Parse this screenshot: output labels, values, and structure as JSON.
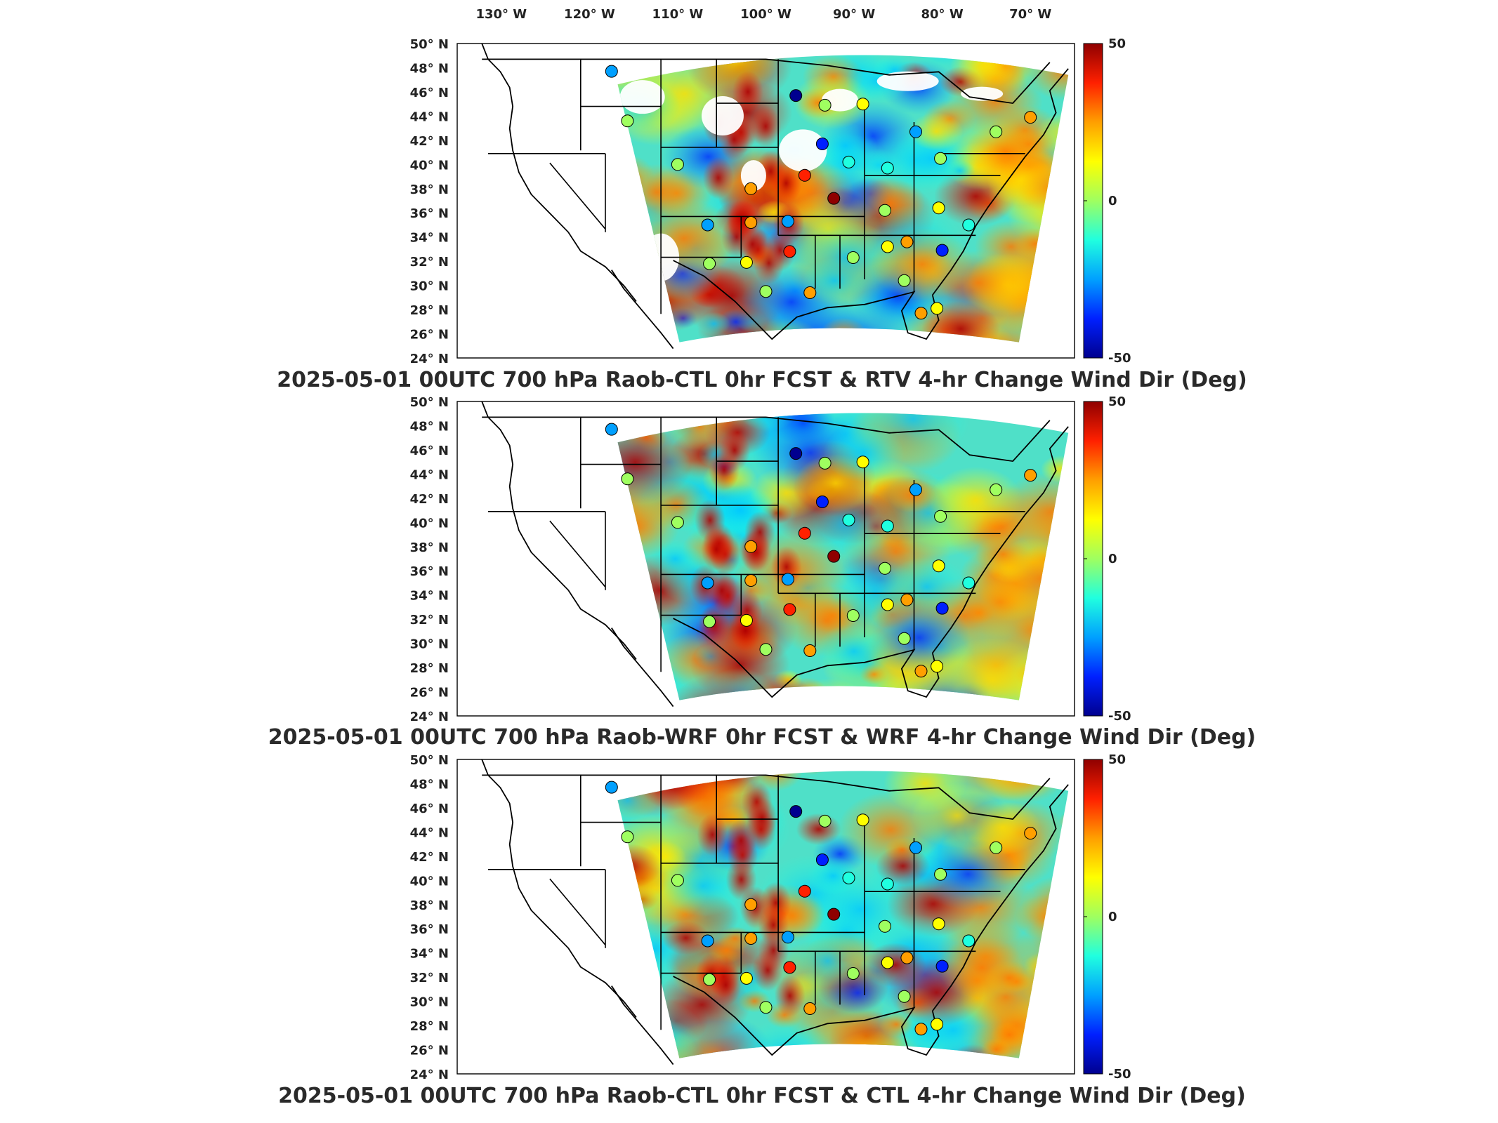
{
  "chart_data": [
    {
      "type": "heatmap",
      "title": "2025-05-01 00UTC 700 hPa Raob-CTL 0hr FCST & RTV 4-hr Change Wind Dir (Deg)",
      "colorbar": {
        "min": -50,
        "max": 50,
        "tick_labels": [
          "50",
          "0",
          "-50"
        ]
      },
      "lon_labels": [
        "130° W",
        "120° W",
        "110° W",
        "100° W",
        "90° W",
        "80° W",
        "70° W"
      ],
      "lat_labels": [
        "50° N",
        "48° N",
        "46° N",
        "44° N",
        "42° N",
        "40° N",
        "38° N",
        "36° N",
        "34° N",
        "32° N",
        "30° N",
        "28° N",
        "26° N",
        "24° N"
      ],
      "stations": [
        {
          "lon": -117.5,
          "lat": 47.7,
          "value": -25
        },
        {
          "lon": -96.6,
          "lat": 45.7,
          "value": -45
        },
        {
          "lon": -115.7,
          "lat": 43.6,
          "value": -5
        },
        {
          "lon": -93.3,
          "lat": 44.9,
          "value": 5
        },
        {
          "lon": -89.0,
          "lat": 45.0,
          "value": 10
        },
        {
          "lon": -83.0,
          "lat": 42.7,
          "value": -20
        },
        {
          "lon": -73.9,
          "lat": 42.7,
          "value": 5
        },
        {
          "lon": -70.0,
          "lat": 43.9,
          "value": 25
        },
        {
          "lon": -93.6,
          "lat": 41.7,
          "value": -40
        },
        {
          "lon": -90.6,
          "lat": 40.2,
          "value": -10
        },
        {
          "lon": -86.2,
          "lat": 39.7,
          "value": -15
        },
        {
          "lon": -80.2,
          "lat": 40.5,
          "value": 0
        },
        {
          "lon": -101.7,
          "lat": 38.0,
          "value": 30
        },
        {
          "lon": -95.6,
          "lat": 39.1,
          "value": 35
        },
        {
          "lon": -92.3,
          "lat": 37.2,
          "value": 48
        },
        {
          "lon": -86.5,
          "lat": 36.2,
          "value": 0
        },
        {
          "lon": -80.4,
          "lat": 36.4,
          "value": 10
        },
        {
          "lon": -77.0,
          "lat": 35.0,
          "value": -10
        },
        {
          "lon": -106.6,
          "lat": 35.0,
          "value": -20
        },
        {
          "lon": -101.7,
          "lat": 35.2,
          "value": 30
        },
        {
          "lon": -97.5,
          "lat": 35.3,
          "value": -25
        },
        {
          "lon": -97.3,
          "lat": 32.8,
          "value": 35
        },
        {
          "lon": -102.2,
          "lat": 31.9,
          "value": 10
        },
        {
          "lon": -90.1,
          "lat": 32.3,
          "value": 5
        },
        {
          "lon": -86.2,
          "lat": 33.2,
          "value": 15
        },
        {
          "lon": -84.0,
          "lat": 33.6,
          "value": 30
        },
        {
          "lon": -80.0,
          "lat": 32.9,
          "value": -40
        },
        {
          "lon": -106.4,
          "lat": 31.8,
          "value": 0
        },
        {
          "lon": -100.0,
          "lat": 29.5,
          "value": 5
        },
        {
          "lon": -95.0,
          "lat": 29.4,
          "value": 20
        },
        {
          "lon": -82.4,
          "lat": 27.7,
          "value": 20
        },
        {
          "lon": -84.3,
          "lat": 30.4,
          "value": 0
        },
        {
          "lon": -80.6,
          "lat": 28.1,
          "value": 10
        },
        {
          "lon": -110.0,
          "lat": 40.0,
          "value": 5
        }
      ]
    },
    {
      "type": "heatmap",
      "title": "2025-05-01 00UTC 700 hPa Raob-WRF 0hr FCST & WRF 4-hr Change Wind Dir (Deg)",
      "colorbar": {
        "min": -50,
        "max": 50,
        "tick_labels": [
          "50",
          "0",
          "-50"
        ]
      },
      "lon_labels": [],
      "lat_labels": [
        "50° N",
        "48° N",
        "46° N",
        "44° N",
        "42° N",
        "40° N",
        "38° N",
        "36° N",
        "34° N",
        "32° N",
        "30° N",
        "28° N",
        "26° N",
        "24° N"
      ],
      "stations": [
        {
          "lon": -117.5,
          "lat": 47.7,
          "value": -25
        },
        {
          "lon": -96.6,
          "lat": 45.7,
          "value": -45
        },
        {
          "lon": -115.7,
          "lat": 43.6,
          "value": -5
        },
        {
          "lon": -93.3,
          "lat": 44.9,
          "value": 5
        },
        {
          "lon": -89.0,
          "lat": 45.0,
          "value": 10
        },
        {
          "lon": -83.0,
          "lat": 42.7,
          "value": -20
        },
        {
          "lon": -73.9,
          "lat": 42.7,
          "value": 5
        },
        {
          "lon": -70.0,
          "lat": 43.9,
          "value": 25
        },
        {
          "lon": -93.6,
          "lat": 41.7,
          "value": -40
        },
        {
          "lon": -90.6,
          "lat": 40.2,
          "value": -10
        },
        {
          "lon": -86.2,
          "lat": 39.7,
          "value": -15
        },
        {
          "lon": -80.2,
          "lat": 40.5,
          "value": 0
        },
        {
          "lon": -101.7,
          "lat": 38.0,
          "value": 30
        },
        {
          "lon": -95.6,
          "lat": 39.1,
          "value": 35
        },
        {
          "lon": -92.3,
          "lat": 37.2,
          "value": 48
        },
        {
          "lon": -86.5,
          "lat": 36.2,
          "value": 0
        },
        {
          "lon": -80.4,
          "lat": 36.4,
          "value": 10
        },
        {
          "lon": -77.0,
          "lat": 35.0,
          "value": -10
        },
        {
          "lon": -106.6,
          "lat": 35.0,
          "value": -20
        },
        {
          "lon": -101.7,
          "lat": 35.2,
          "value": 30
        },
        {
          "lon": -97.5,
          "lat": 35.3,
          "value": -25
        },
        {
          "lon": -97.3,
          "lat": 32.8,
          "value": 35
        },
        {
          "lon": -102.2,
          "lat": 31.9,
          "value": 10
        },
        {
          "lon": -90.1,
          "lat": 32.3,
          "value": 5
        },
        {
          "lon": -86.2,
          "lat": 33.2,
          "value": 15
        },
        {
          "lon": -84.0,
          "lat": 33.6,
          "value": 30
        },
        {
          "lon": -80.0,
          "lat": 32.9,
          "value": -40
        },
        {
          "lon": -106.4,
          "lat": 31.8,
          "value": 0
        },
        {
          "lon": -100.0,
          "lat": 29.5,
          "value": 5
        },
        {
          "lon": -95.0,
          "lat": 29.4,
          "value": 20
        },
        {
          "lon": -82.4,
          "lat": 27.7,
          "value": 20
        },
        {
          "lon": -84.3,
          "lat": 30.4,
          "value": 0
        },
        {
          "lon": -80.6,
          "lat": 28.1,
          "value": 10
        },
        {
          "lon": -110.0,
          "lat": 40.0,
          "value": 5
        }
      ]
    },
    {
      "type": "heatmap",
      "title": "2025-05-01 00UTC 700 hPa Raob-CTL 0hr FCST & CTL 4-hr Change Wind Dir (Deg)",
      "colorbar": {
        "min": -50,
        "max": 50,
        "tick_labels": [
          "50",
          "0",
          "-50"
        ]
      },
      "lon_labels": [],
      "lat_labels": [
        "50° N",
        "48° N",
        "46° N",
        "44° N",
        "42° N",
        "40° N",
        "38° N",
        "36° N",
        "34° N",
        "32° N",
        "30° N",
        "28° N",
        "26° N",
        "24° N"
      ],
      "stations": [
        {
          "lon": -117.5,
          "lat": 47.7,
          "value": -25
        },
        {
          "lon": -96.6,
          "lat": 45.7,
          "value": -45
        },
        {
          "lon": -115.7,
          "lat": 43.6,
          "value": -5
        },
        {
          "lon": -93.3,
          "lat": 44.9,
          "value": 5
        },
        {
          "lon": -89.0,
          "lat": 45.0,
          "value": 10
        },
        {
          "lon": -83.0,
          "lat": 42.7,
          "value": -20
        },
        {
          "lon": -73.9,
          "lat": 42.7,
          "value": 5
        },
        {
          "lon": -70.0,
          "lat": 43.9,
          "value": 25
        },
        {
          "lon": -93.6,
          "lat": 41.7,
          "value": -40
        },
        {
          "lon": -90.6,
          "lat": 40.2,
          "value": -10
        },
        {
          "lon": -86.2,
          "lat": 39.7,
          "value": -15
        },
        {
          "lon": -80.2,
          "lat": 40.5,
          "value": 0
        },
        {
          "lon": -101.7,
          "lat": 38.0,
          "value": 30
        },
        {
          "lon": -95.6,
          "lat": 39.1,
          "value": 35
        },
        {
          "lon": -92.3,
          "lat": 37.2,
          "value": 48
        },
        {
          "lon": -86.5,
          "lat": 36.2,
          "value": 0
        },
        {
          "lon": -80.4,
          "lat": 36.4,
          "value": 10
        },
        {
          "lon": -77.0,
          "lat": 35.0,
          "value": -10
        },
        {
          "lon": -106.6,
          "lat": 35.0,
          "value": -20
        },
        {
          "lon": -101.7,
          "lat": 35.2,
          "value": 30
        },
        {
          "lon": -97.5,
          "lat": 35.3,
          "value": -25
        },
        {
          "lon": -97.3,
          "lat": 32.8,
          "value": 35
        },
        {
          "lon": -102.2,
          "lat": 31.9,
          "value": 10
        },
        {
          "lon": -90.1,
          "lat": 32.3,
          "value": 5
        },
        {
          "lon": -86.2,
          "lat": 33.2,
          "value": 15
        },
        {
          "lon": -84.0,
          "lat": 33.6,
          "value": 30
        },
        {
          "lon": -80.0,
          "lat": 32.9,
          "value": -40
        },
        {
          "lon": -106.4,
          "lat": 31.8,
          "value": 0
        },
        {
          "lon": -100.0,
          "lat": 29.5,
          "value": 5
        },
        {
          "lon": -95.0,
          "lat": 29.4,
          "value": 20
        },
        {
          "lon": -82.4,
          "lat": 27.7,
          "value": 20
        },
        {
          "lon": -84.3,
          "lat": 30.4,
          "value": 0
        },
        {
          "lon": -80.6,
          "lat": 28.1,
          "value": 10
        },
        {
          "lon": -110.0,
          "lat": 40.0,
          "value": 5
        }
      ]
    }
  ],
  "colormap": [
    "#00008f",
    "#0020ff",
    "#00a0ff",
    "#20ffdf",
    "#9fff60",
    "#ffff00",
    "#ff9f00",
    "#ff2000",
    "#8f0000"
  ]
}
